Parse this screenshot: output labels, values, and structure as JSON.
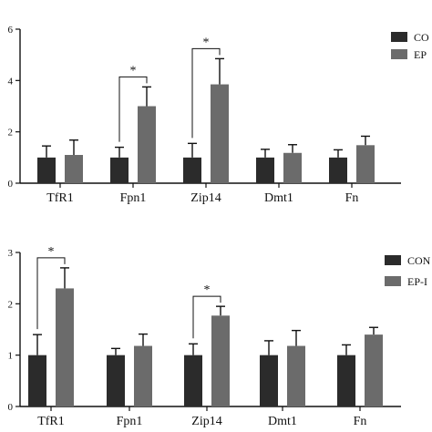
{
  "chart_data": [
    {
      "type": "bar",
      "categories": [
        "TfR1",
        "Fpn1",
        "Zip14",
        "Dmt1",
        "Fn"
      ],
      "series": [
        {
          "name": "CO",
          "values": [
            1.0,
            1.0,
            1.0,
            1.0,
            1.0
          ],
          "errors": [
            0.45,
            0.4,
            0.55,
            0.32,
            0.3
          ],
          "color": "#2b2b2b"
        },
        {
          "name": "EP",
          "values": [
            1.1,
            3.0,
            3.85,
            1.18,
            1.48
          ],
          "errors": [
            0.58,
            0.75,
            1.0,
            0.32,
            0.35
          ],
          "color": "#6b6b6b"
        }
      ],
      "ylim": [
        0,
        6
      ],
      "yticks": [
        "0",
        "2",
        "4",
        "6"
      ],
      "significance": [
        {
          "category_index": 1,
          "label": "*"
        },
        {
          "category_index": 2,
          "label": "*"
        }
      ],
      "legend_position": "top-right"
    },
    {
      "type": "bar",
      "categories": [
        "TfR1",
        "Fpn1",
        "Zip14",
        "Dmt1",
        "Fn"
      ],
      "series": [
        {
          "name": "CON",
          "values": [
            1.0,
            1.0,
            1.0,
            1.0,
            1.0
          ],
          "errors": [
            0.4,
            0.13,
            0.22,
            0.28,
            0.2
          ],
          "color": "#2b2b2b"
        },
        {
          "name": "EP-I",
          "values": [
            2.3,
            1.18,
            1.77,
            1.18,
            1.4
          ],
          "errors": [
            0.4,
            0.23,
            0.18,
            0.3,
            0.14
          ],
          "color": "#6b6b6b"
        }
      ],
      "ylim": [
        0,
        3
      ],
      "yticks": [
        "0",
        "1",
        "2",
        "3"
      ],
      "significance": [
        {
          "category_index": 0,
          "label": "*"
        },
        {
          "category_index": 2,
          "label": "*"
        }
      ],
      "legend_position": "top-right"
    }
  ]
}
